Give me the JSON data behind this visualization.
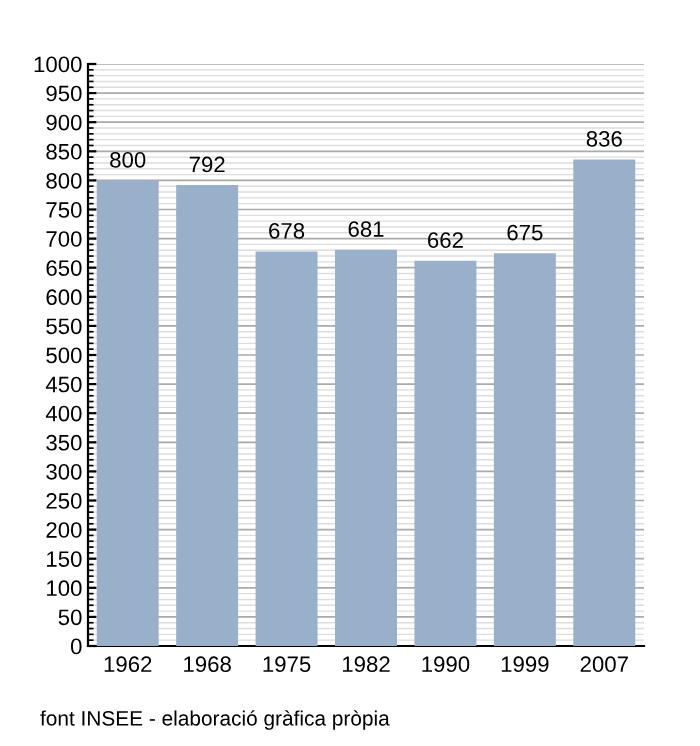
{
  "chart_data": {
    "type": "bar",
    "categories": [
      "1962",
      "1968",
      "1975",
      "1982",
      "1990",
      "1999",
      "2007"
    ],
    "values": [
      800,
      792,
      678,
      681,
      662,
      675,
      836
    ],
    "color": "#98b0c9",
    "ylim": [
      0,
      1000
    ],
    "yticks": [
      0,
      50,
      100,
      150,
      200,
      250,
      300,
      350,
      400,
      450,
      500,
      550,
      600,
      650,
      700,
      750,
      800,
      850,
      900,
      950,
      1000
    ],
    "grid": "y",
    "data_labels": true,
    "annotations": [
      "font INSEE - elaboració gràfica pròpia"
    ]
  }
}
